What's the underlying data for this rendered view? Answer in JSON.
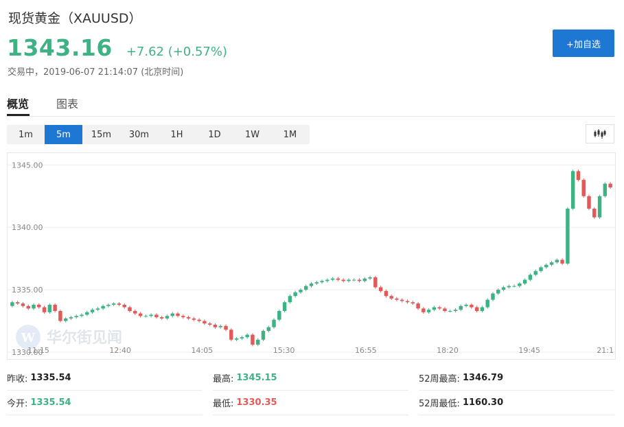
{
  "header": {
    "title": "现货黄金（XAUUSD）",
    "price": "1343.16",
    "change": "+7.62 (+0.57%)",
    "status": "交易中，2019-06-07 21:14:07 (北京时间)",
    "add_button": "+加自选"
  },
  "tabs": [
    {
      "label": "概览",
      "active": true
    },
    {
      "label": "图表",
      "active": false
    }
  ],
  "periods": [
    {
      "label": "1m",
      "active": false
    },
    {
      "label": "5m",
      "active": true
    },
    {
      "label": "15m",
      "active": false
    },
    {
      "label": "30m",
      "active": false
    },
    {
      "label": "1H",
      "active": false
    },
    {
      "label": "1D",
      "active": false
    },
    {
      "label": "1W",
      "active": false
    },
    {
      "label": "1M",
      "active": false
    }
  ],
  "watermark": "华尔街见闻",
  "colors": {
    "up": "#3fb284",
    "down": "#e05a5a",
    "accent": "#1f77d4"
  },
  "icons": {
    "chart_type": "candlestick-icon",
    "logo": "wallstreetcn-logo-icon"
  },
  "chart_data": {
    "type": "candlestick",
    "title": "",
    "xlabel": "",
    "ylabel": "",
    "x_tick_labels": [
      "11:15",
      "12:40",
      "14:05",
      "15:30",
      "16:55",
      "18:20",
      "19:45",
      "21:1"
    ],
    "y_tick_labels": [
      "1330.00",
      "1335.00",
      "1340.00",
      "1345.00"
    ],
    "ylim": [
      1330.0,
      1345.4
    ],
    "grid": true,
    "series": [
      {
        "values": [
          1334.0,
          1333.9,
          1333.7,
          1333.5,
          1333.8,
          1333.6,
          1333.2,
          1333.8,
          1333.3,
          1332.5,
          1332.7,
          1332.8,
          1332.9,
          1333.0,
          1333.2,
          1333.4,
          1333.5,
          1333.7,
          1333.8,
          1333.9,
          1333.8,
          1333.6,
          1333.3,
          1333.1,
          1332.9,
          1332.9,
          1333.0,
          1332.8,
          1332.7,
          1332.9,
          1333.1,
          1332.9,
          1332.8,
          1332.7,
          1332.6,
          1332.5,
          1332.3,
          1332.2,
          1332.0,
          1332.1,
          1331.8,
          1331.0,
          1331.1,
          1331.2,
          1331.4,
          1330.6,
          1331.0,
          1331.7,
          1332.0,
          1332.6,
          1333.3,
          1334.0,
          1334.5,
          1334.8,
          1335.0,
          1335.3,
          1335.5,
          1335.6,
          1335.7,
          1335.8,
          1335.9,
          1335.8,
          1335.7,
          1335.8,
          1335.8,
          1335.7,
          1335.9,
          1336.0,
          1335.2,
          1334.9,
          1334.5,
          1334.3,
          1334.2,
          1334.1,
          1334.0,
          1333.9,
          1333.5,
          1333.2,
          1333.4,
          1333.6,
          1333.5,
          1333.3,
          1333.3,
          1333.4,
          1333.7,
          1333.8,
          1333.6,
          1333.3,
          1333.6,
          1334.2,
          1334.7,
          1335.0,
          1335.2,
          1335.3,
          1335.3,
          1335.5,
          1335.8,
          1336.2,
          1336.5,
          1336.8,
          1337.0,
          1337.2,
          1337.4,
          1337.1,
          1341.5,
          1344.5,
          1343.8,
          1342.5,
          1341.5,
          1340.8,
          1342.5,
          1343.5,
          1343.2
        ]
      }
    ]
  },
  "stats": [
    {
      "label": "昨收:",
      "value": "1335.54",
      "tone": "dark"
    },
    {
      "label": "最高:",
      "value": "1345.15",
      "tone": "up"
    },
    {
      "label": "52周最高:",
      "value": "1346.79",
      "tone": "dark"
    },
    {
      "label": "今开:",
      "value": "1335.54",
      "tone": "up"
    },
    {
      "label": "最低:",
      "value": "1330.35",
      "tone": "down"
    },
    {
      "label": "52周最低:",
      "value": "1160.30",
      "tone": "dark"
    }
  ]
}
